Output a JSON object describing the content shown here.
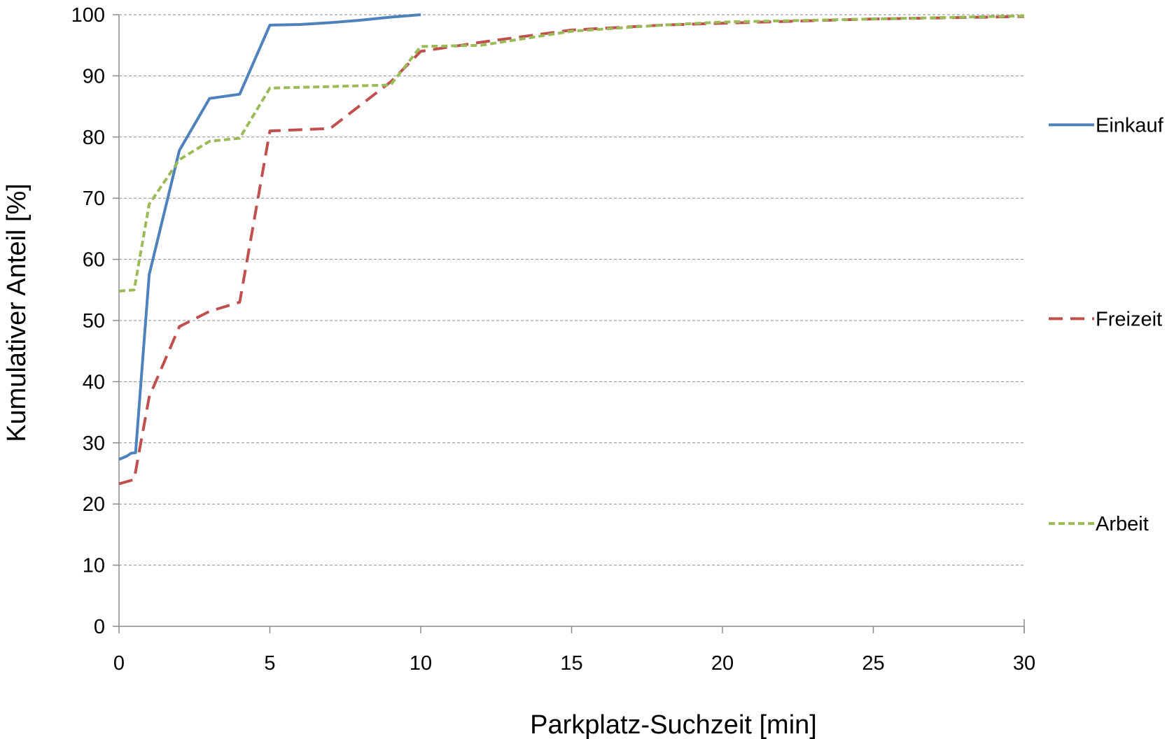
{
  "chart_data": {
    "type": "line",
    "title": "",
    "xlabel": "Parkplatz-Suchzeit [min]",
    "ylabel": "Kumulativer Anteil [%]",
    "xlim": [
      0,
      30
    ],
    "ylim": [
      0,
      100
    ],
    "x_ticks": [
      "0",
      "5",
      "10",
      "15",
      "20",
      "25",
      "30"
    ],
    "y_ticks": [
      "0",
      "10",
      "20",
      "30",
      "40",
      "50",
      "60",
      "70",
      "80",
      "90",
      "100"
    ],
    "grid": "horizontal dashed",
    "legend_position": "right",
    "series": [
      {
        "name": "Einkauf",
        "color": "#4F81BD",
        "style": "solid",
        "points": [
          [
            0,
            27.3
          ],
          [
            0.25,
            27.8
          ],
          [
            0.4,
            28.3
          ],
          [
            0.55,
            28.4
          ],
          [
            1,
            57.5
          ],
          [
            2,
            77.8
          ],
          [
            3,
            86.3
          ],
          [
            4,
            87.0
          ],
          [
            5,
            98.3
          ],
          [
            6,
            98.4
          ],
          [
            7,
            98.7
          ],
          [
            8,
            99.1
          ],
          [
            9,
            99.6
          ],
          [
            10,
            100
          ]
        ]
      },
      {
        "name": "Freizeit",
        "color": "#C0504D",
        "style": "dashed",
        "points": [
          [
            0,
            23.3
          ],
          [
            0.5,
            24.0
          ],
          [
            1,
            37.5
          ],
          [
            2,
            49.0
          ],
          [
            3,
            51.5
          ],
          [
            4,
            53.0
          ],
          [
            5,
            81.0
          ],
          [
            7,
            81.4
          ],
          [
            9,
            89.0
          ],
          [
            10,
            94.0
          ],
          [
            12,
            95.5
          ],
          [
            15,
            97.5
          ],
          [
            18,
            98.3
          ],
          [
            20,
            98.6
          ],
          [
            25,
            99.3
          ],
          [
            30,
            99.7
          ]
        ]
      },
      {
        "name": "Arbeit",
        "color": "#9BBB59",
        "style": "dotted",
        "points": [
          [
            0,
            54.8
          ],
          [
            0.5,
            55.0
          ],
          [
            1,
            69.0
          ],
          [
            2,
            76.3
          ],
          [
            3,
            79.3
          ],
          [
            4,
            79.8
          ],
          [
            5,
            88.0
          ],
          [
            9,
            88.5
          ],
          [
            10,
            94.8
          ],
          [
            12,
            95.0
          ],
          [
            15,
            97.3
          ],
          [
            18,
            98.3
          ],
          [
            20,
            98.8
          ],
          [
            25,
            99.3
          ],
          [
            30,
            99.8
          ]
        ]
      }
    ]
  }
}
